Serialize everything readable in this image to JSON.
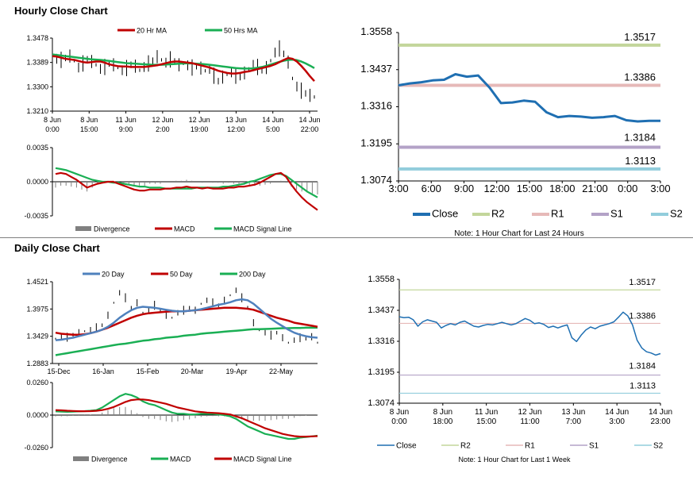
{
  "sections": {
    "hourly_title": "Hourly Close Chart",
    "daily_title": "Daily Close Chart"
  },
  "colors": {
    "ma_red": "#c00000",
    "ma_green": "#1aaf54",
    "ma_blue": "#4f81bd",
    "price": "#000000",
    "divergence": "#808080",
    "close_blue": "#1f6fb2",
    "r2": "#c3d69b",
    "r1": "#e6b9b8",
    "s1": "#b3a2c7",
    "s2": "#92cddc"
  },
  "chart_data": [
    {
      "id": "hourly-price",
      "type": "line",
      "legend": [
        "20 Hr MA",
        "50 Hrs MA"
      ],
      "ylim": [
        1.321,
        1.3478
      ],
      "y_ticks": [
        "1.3478",
        "1.3389",
        "1.3300",
        "1.3210"
      ],
      "x_ticks": [
        [
          "8 Jun",
          "0:00"
        ],
        [
          "8 Jun",
          "15:00"
        ],
        [
          "11 Jun",
          "9:00"
        ],
        [
          "12 Jun",
          "2:00"
        ],
        [
          "12 Jun",
          "19:00"
        ],
        [
          "13 Jun",
          "12:00"
        ],
        [
          "14 Jun",
          "5:00"
        ],
        [
          "14 Jun",
          "22:00"
        ]
      ],
      "series": [
        {
          "name": "Price",
          "values": [
            1.341,
            1.3402,
            1.3398,
            1.3405,
            1.3412,
            1.3395,
            1.337,
            1.3385,
            1.34,
            1.3392,
            1.338,
            1.3365,
            1.3372,
            1.3385,
            1.338,
            1.337,
            1.336,
            1.3368,
            1.338,
            1.3375,
            1.336,
            1.3372,
            1.3385,
            1.3395,
            1.341,
            1.3398,
            1.3388,
            1.34,
            1.3392,
            1.338,
            1.3385,
            1.3378,
            1.337,
            1.3375,
            1.3368,
            1.3358,
            1.3365,
            1.334,
            1.332,
            1.3335,
            1.3345,
            1.3352,
            1.334,
            1.3335,
            1.335,
            1.3365,
            1.338,
            1.3372,
            1.336,
            1.337,
            1.3395,
            1.3425,
            1.344,
            1.342,
            1.339,
            1.333,
            1.33,
            1.3285,
            1.3275,
            1.3268,
            1.3262
          ]
        },
        {
          "name": "20 Hr MA",
          "values": [
            1.3412,
            1.341,
            1.3406,
            1.3402,
            1.34,
            1.3398,
            1.3394,
            1.339,
            1.3388,
            1.339,
            1.3392,
            1.3392,
            1.3388,
            1.3382,
            1.3378,
            1.3375,
            1.3374,
            1.3374,
            1.3372,
            1.3372,
            1.3372,
            1.3372,
            1.3374,
            1.3376,
            1.3378,
            1.3382,
            1.3386,
            1.339,
            1.3392,
            1.3392,
            1.339,
            1.3388,
            1.3386,
            1.3382,
            1.3378,
            1.3374,
            1.337,
            1.3364,
            1.3358,
            1.3354,
            1.335,
            1.3348,
            1.3348,
            1.335,
            1.3354,
            1.3356,
            1.336,
            1.3364,
            1.3368,
            1.3372,
            1.3376,
            1.3382,
            1.339,
            1.3398,
            1.3405,
            1.3402,
            1.3392,
            1.3376,
            1.3358,
            1.3338,
            1.332
          ]
        },
        {
          "name": "50 Hrs MA",
          "values": [
            1.3418,
            1.3416,
            1.3414,
            1.3412,
            1.341,
            1.3408,
            1.3406,
            1.3404,
            1.3402,
            1.34,
            1.3399,
            1.3398,
            1.3396,
            1.3394,
            1.3392,
            1.339,
            1.3388,
            1.3386,
            1.3385,
            1.3384,
            1.3383,
            1.3382,
            1.3381,
            1.338,
            1.338,
            1.338,
            1.3381,
            1.3382,
            1.3383,
            1.3384,
            1.3385,
            1.3385,
            1.3385,
            1.3384,
            1.3383,
            1.3382,
            1.338,
            1.3378,
            1.3376,
            1.3374,
            1.3372,
            1.337,
            1.3368,
            1.3367,
            1.3366,
            1.3366,
            1.3367,
            1.3369,
            1.3372,
            1.3376,
            1.3381,
            1.3386,
            1.3391,
            1.3395,
            1.3398,
            1.3399,
            1.3397,
            1.3392,
            1.3385,
            1.3377,
            1.3368
          ]
        }
      ]
    },
    {
      "id": "hourly-macd",
      "type": "line",
      "legend": [
        "Divergence",
        "MACD",
        "MACD Signal Line"
      ],
      "ylim": [
        -0.0035,
        0.0035
      ],
      "y_ticks": [
        "0.0035",
        "0.0000",
        "-0.0035"
      ],
      "series": [
        {
          "name": "MACD",
          "values": [
            0.0008,
            0.0009,
            0.0008,
            0.0005,
            0.0002,
            -0.0002,
            -0.0006,
            -0.0004,
            -0.0002,
            -0.0001,
            0.0,
            0.0,
            -0.0002,
            -0.0004,
            -0.0006,
            -0.0008,
            -0.0009,
            -0.0009,
            -0.0008,
            -0.0008,
            -0.0008,
            -0.0007,
            -0.0007,
            -0.0006,
            -0.0006,
            -0.0005,
            -0.0006,
            -0.0006,
            -0.0007,
            -0.0006,
            -0.0007,
            -0.0007,
            -0.0007,
            -0.0006,
            -0.0006,
            -0.0005,
            -0.0005,
            -0.0004,
            -0.0003,
            -0.0001,
            0.0002,
            0.0005,
            0.0008,
            0.0009,
            0.0005,
            -0.0003,
            -0.001,
            -0.0016,
            -0.0021,
            -0.0025,
            -0.0029
          ]
        },
        {
          "name": "MACD Signal Line",
          "values": [
            0.0014,
            0.0013,
            0.0012,
            0.001,
            0.0008,
            0.0006,
            0.0004,
            0.0002,
            0.0001,
            0.0,
            0.0,
            -0.0001,
            -0.0001,
            -0.0002,
            -0.0003,
            -0.0004,
            -0.0005,
            -0.0005,
            -0.0006,
            -0.0006,
            -0.0006,
            -0.0007,
            -0.0007,
            -0.0007,
            -0.0007,
            -0.0007,
            -0.0007,
            -0.0006,
            -0.0006,
            -0.0006,
            -0.0006,
            -0.0006,
            -0.0005,
            -0.0005,
            -0.0004,
            -0.0003,
            -0.0002,
            0.0,
            0.0001,
            0.0003,
            0.0005,
            0.0007,
            0.0008,
            0.0008,
            0.0006,
            0.0002,
            -0.0002,
            -0.0006,
            -0.001,
            -0.0013,
            -0.0016
          ]
        }
      ]
    },
    {
      "id": "hourly-levels",
      "type": "line",
      "ylim": [
        1.3074,
        1.3558
      ],
      "y_ticks": [
        "1.3558",
        "1.3437",
        "1.3316",
        "1.3195",
        "1.3074"
      ],
      "x_ticks": [
        "3:00",
        "6:00",
        "9:00",
        "12:00",
        "15:00",
        "18:00",
        "21:00",
        "0:00",
        "3:00"
      ],
      "legend": [
        "Close",
        "R2",
        "R1",
        "S1",
        "S2"
      ],
      "note": "Note: 1 Hour Chart for Last 24 Hours",
      "levels": {
        "R2": 1.3517,
        "R1": 1.3386,
        "S1": 1.3184,
        "S2": 1.3113
      },
      "level_labels": {
        "R2": "1.3517",
        "R1": "1.3386",
        "S1": "1.3184",
        "S2": "1.3113"
      },
      "series": [
        {
          "name": "Close",
          "values": [
            1.3386,
            1.3392,
            1.3396,
            1.3402,
            1.3404,
            1.3422,
            1.3414,
            1.3418,
            1.3378,
            1.3328,
            1.333,
            1.3336,
            1.3332,
            1.3298,
            1.3282,
            1.3286,
            1.3284,
            1.328,
            1.3282,
            1.3286,
            1.3272,
            1.3268,
            1.327,
            1.327
          ]
        }
      ]
    },
    {
      "id": "daily-price",
      "type": "line",
      "legend": [
        "20 Day",
        "50 Day",
        "200 Day"
      ],
      "ylim": [
        1.2883,
        1.4521
      ],
      "y_ticks": [
        "1.4521",
        "1.3975",
        "1.3429",
        "1.2883"
      ],
      "x_ticks": [
        "15-Dec",
        "16-Jan",
        "15-Feb",
        "20-Mar",
        "19-Apr",
        "22-May"
      ],
      "series": [
        {
          "name": "Price",
          "values": [
            1.338,
            1.342,
            1.341,
            1.346,
            1.35,
            1.353,
            1.356,
            1.36,
            1.365,
            1.385,
            1.41,
            1.43,
            1.42,
            1.4,
            1.41,
            1.39,
            1.395,
            1.405,
            1.395,
            1.385,
            1.38,
            1.39,
            1.395,
            1.4,
            1.395,
            1.408,
            1.415,
            1.41,
            1.405,
            1.415,
            1.425,
            1.435,
            1.42,
            1.4,
            1.37,
            1.355,
            1.35,
            1.345,
            1.35,
            1.34,
            1.33,
            1.335,
            1.34,
            1.338,
            1.342,
            1.33
          ]
        },
        {
          "name": "20 Day",
          "values": [
            1.335,
            1.336,
            1.338,
            1.34,
            1.343,
            1.346,
            1.349,
            1.352,
            1.356,
            1.362,
            1.37,
            1.38,
            1.388,
            1.395,
            1.4,
            1.402,
            1.401,
            1.4,
            1.398,
            1.396,
            1.394,
            1.393,
            1.393,
            1.394,
            1.395,
            1.397,
            1.4,
            1.403,
            1.406,
            1.408,
            1.411,
            1.415,
            1.417,
            1.415,
            1.408,
            1.398,
            1.388,
            1.378,
            1.37,
            1.363,
            1.356,
            1.35,
            1.346,
            1.343,
            1.341,
            1.34
          ]
        },
        {
          "name": "50 Day",
          "values": [
            1.35,
            1.348,
            1.347,
            1.346,
            1.346,
            1.347,
            1.349,
            1.352,
            1.356,
            1.36,
            1.365,
            1.37,
            1.375,
            1.38,
            1.384,
            1.387,
            1.389,
            1.39,
            1.391,
            1.392,
            1.393,
            1.393,
            1.393,
            1.394,
            1.395,
            1.396,
            1.397,
            1.398,
            1.399,
            1.4,
            1.4,
            1.4,
            1.399,
            1.398,
            1.396,
            1.392,
            1.388,
            1.384,
            1.38,
            1.377,
            1.374,
            1.37,
            1.368,
            1.366,
            1.364,
            1.362
          ]
        },
        {
          "name": "200 Day",
          "values": [
            1.305,
            1.307,
            1.309,
            1.311,
            1.313,
            1.315,
            1.317,
            1.319,
            1.321,
            1.323,
            1.325,
            1.327,
            1.328,
            1.33,
            1.332,
            1.334,
            1.335,
            1.337,
            1.338,
            1.34,
            1.341,
            1.342,
            1.344,
            1.345,
            1.346,
            1.348,
            1.349,
            1.35,
            1.351,
            1.352,
            1.353,
            1.354,
            1.355,
            1.356,
            1.357,
            1.357,
            1.3575,
            1.358,
            1.3585,
            1.359,
            1.359,
            1.3595,
            1.3595,
            1.36,
            1.36,
            1.36
          ]
        }
      ]
    },
    {
      "id": "daily-macd",
      "type": "line",
      "legend": [
        "Divergence",
        "MACD",
        "MACD Signal Line"
      ],
      "ylim": [
        -0.026,
        0.026
      ],
      "y_ticks": [
        "0.0260",
        "0.0000",
        "-0.0260"
      ],
      "series": [
        {
          "name": "MACD",
          "values": [
            0.003,
            0.0028,
            0.0026,
            0.0028,
            0.003,
            0.0032,
            0.0035,
            0.004,
            0.006,
            0.009,
            0.012,
            0.015,
            0.017,
            0.016,
            0.014,
            0.011,
            0.009,
            0.008,
            0.006,
            0.004,
            0.002,
            0.001,
            0.001,
            0.0005,
            0.0005,
            0.001,
            0.001,
            0.001,
            0.0005,
            0.0,
            -0.001,
            -0.003,
            -0.006,
            -0.009,
            -0.011,
            -0.013,
            -0.015,
            -0.016,
            -0.017,
            -0.018,
            -0.019,
            -0.019,
            -0.018,
            -0.0175,
            -0.017,
            -0.0165
          ]
        },
        {
          "name": "MACD Signal Line",
          "values": [
            0.004,
            0.0038,
            0.0035,
            0.0033,
            0.0031,
            0.0031,
            0.0032,
            0.0034,
            0.004,
            0.005,
            0.0065,
            0.0085,
            0.0105,
            0.012,
            0.0125,
            0.0125,
            0.012,
            0.011,
            0.01,
            0.009,
            0.0075,
            0.006,
            0.005,
            0.004,
            0.003,
            0.0025,
            0.002,
            0.0018,
            0.0015,
            0.001,
            0.0005,
            -0.001,
            -0.0025,
            -0.0045,
            -0.0065,
            -0.0085,
            -0.0105,
            -0.012,
            -0.0135,
            -0.015,
            -0.016,
            -0.0168,
            -0.0172,
            -0.0172,
            -0.017,
            -0.0168
          ]
        }
      ]
    },
    {
      "id": "daily-levels",
      "type": "line",
      "ylim": [
        1.3074,
        1.3558
      ],
      "y_ticks": [
        "1.3558",
        "1.3437",
        "1.3316",
        "1.3195",
        "1.3074"
      ],
      "x_ticks": [
        [
          "8 Jun",
          "0:00"
        ],
        [
          "8 Jun",
          "18:00"
        ],
        [
          "11 Jun",
          "15:00"
        ],
        [
          "12 Jun",
          "11:00"
        ],
        [
          "13 Jun",
          "7:00"
        ],
        [
          "14 Jun",
          "3:00"
        ],
        [
          "14 Jun",
          "23:00"
        ]
      ],
      "legend": [
        "Close",
        "R2",
        "R1",
        "S1",
        "S2"
      ],
      "note": "Note: 1 Hour Chart for Last 1 Week",
      "levels": {
        "R2": 1.3517,
        "R1": 1.3386,
        "S1": 1.3184,
        "S2": 1.3113
      },
      "level_labels": {
        "R2": "1.3517",
        "R1": "1.3386",
        "S1": "1.3184",
        "S2": "1.3113"
      },
      "series": [
        {
          "name": "Close",
          "values": [
            1.3412,
            1.3408,
            1.341,
            1.34,
            1.3375,
            1.3392,
            1.34,
            1.3395,
            1.339,
            1.3368,
            1.3378,
            1.3385,
            1.338,
            1.339,
            1.3395,
            1.3385,
            1.3375,
            1.3372,
            1.3378,
            1.3382,
            1.338,
            1.3385,
            1.339,
            1.3385,
            1.338,
            1.3385,
            1.3395,
            1.3405,
            1.3398,
            1.3385,
            1.3388,
            1.3382,
            1.337,
            1.3375,
            1.3368,
            1.3375,
            1.338,
            1.333,
            1.3315,
            1.334,
            1.336,
            1.3372,
            1.3365,
            1.3375,
            1.338,
            1.3385,
            1.3392,
            1.341,
            1.343,
            1.3415,
            1.338,
            1.332,
            1.329,
            1.3275,
            1.327,
            1.3262,
            1.3268
          ]
        }
      ]
    }
  ]
}
